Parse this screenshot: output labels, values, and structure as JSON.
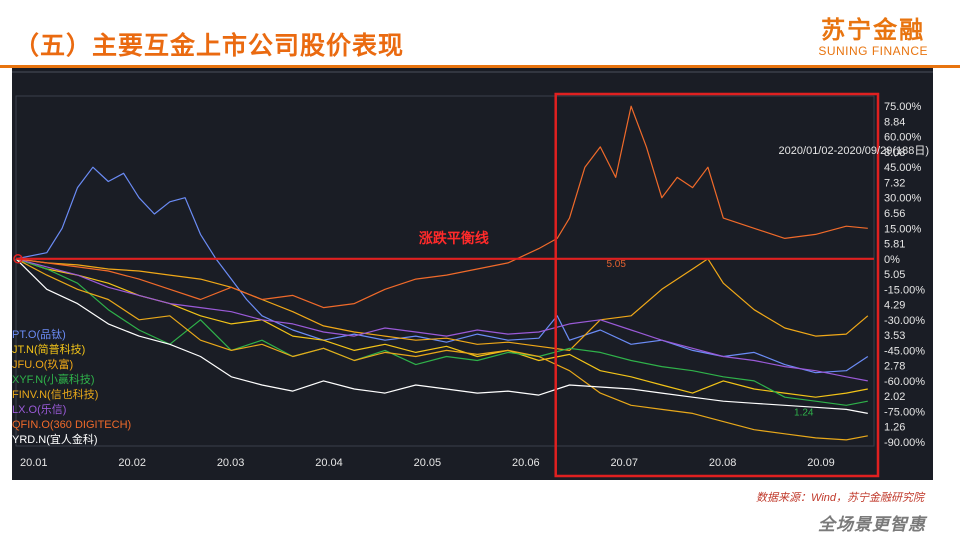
{
  "page": {
    "title": "（五）主要互金上市公司股价表现",
    "logo_cn": "苏宁金融",
    "logo_en": "SUNING FINANCE",
    "source": "数据来源：Wind，苏宁金融研究院",
    "slogan": "全场景更智惠",
    "colors": {
      "accent": "#e8740f",
      "panel_bg": "#1a1d25",
      "highlight": "#e02020"
    }
  },
  "chart_data": {
    "type": "line",
    "date_range": "2020/01/02-2020/09/29(188日)",
    "categories": [
      "20.01",
      "20.02",
      "20.03",
      "20.04",
      "20.05",
      "20.06",
      "20.07",
      "20.08",
      "20.09"
    ],
    "y_right_pct_ticks": [
      "75.00%",
      "60.00%",
      "45.00%",
      "30.00%",
      "15.00%",
      "0%",
      "-15.00%",
      "-30.00%",
      "-45.00%",
      "-60.00%",
      "-75.00%",
      "-90.00%"
    ],
    "y_right_pct_values": [
      75,
      60,
      45,
      30,
      15,
      0,
      -15,
      -30,
      -45,
      -60,
      -75,
      -90
    ],
    "y_price_ticks": [
      "8.84",
      "8.08",
      "7.32",
      "6.56",
      "5.81",
      "5.05",
      "4.29",
      "3.53",
      "2.78",
      "2.02",
      "1.26"
    ],
    "ylim_pct": [
      -92,
      80
    ],
    "zero_line_label": "涨跌平衡线",
    "point_labels": [
      {
        "text": "5.05",
        "x": 19.2,
        "y": -2,
        "color": "#e06030"
      },
      {
        "text": "1.24",
        "x": 25.3,
        "y": -75,
        "color": "#2fb24a"
      }
    ],
    "highlight_from_x": 17.55,
    "x_range": [
      0,
      27.9
    ],
    "series": [
      {
        "name": "PT.O(品钛)",
        "color": "#6b8cf6",
        "points": [
          [
            0,
            0
          ],
          [
            1,
            3
          ],
          [
            1.5,
            15
          ],
          [
            2,
            35
          ],
          [
            2.5,
            45
          ],
          [
            3,
            38
          ],
          [
            3.5,
            42
          ],
          [
            4,
            30
          ],
          [
            4.5,
            22
          ],
          [
            5,
            28
          ],
          [
            5.5,
            30
          ],
          [
            6,
            12
          ],
          [
            6.5,
            0
          ],
          [
            7,
            -10
          ],
          [
            7.5,
            -20
          ],
          [
            8,
            -28
          ],
          [
            9,
            -35
          ],
          [
            10,
            -40
          ],
          [
            11,
            -37
          ],
          [
            12,
            -40
          ],
          [
            13,
            -38
          ],
          [
            14,
            -41
          ],
          [
            15,
            -37
          ],
          [
            16,
            -40
          ],
          [
            17,
            -39
          ],
          [
            17.6,
            -28
          ],
          [
            18,
            -40
          ],
          [
            19,
            -35
          ],
          [
            20,
            -42
          ],
          [
            21,
            -40
          ],
          [
            22,
            -45
          ],
          [
            23,
            -48
          ],
          [
            24,
            -46
          ],
          [
            25,
            -52
          ],
          [
            26,
            -56
          ],
          [
            27,
            -55
          ],
          [
            27.7,
            -48
          ]
        ]
      },
      {
        "name": "JT.N(简普科技)",
        "color": "#f2c318",
        "points": [
          [
            0,
            0
          ],
          [
            1,
            -5
          ],
          [
            2,
            -8
          ],
          [
            3,
            -12
          ],
          [
            4,
            -18
          ],
          [
            5,
            -22
          ],
          [
            6,
            -28
          ],
          [
            7,
            -32
          ],
          [
            8,
            -30
          ],
          [
            9,
            -38
          ],
          [
            10,
            -40
          ],
          [
            11,
            -45
          ],
          [
            12,
            -42
          ],
          [
            13,
            -46
          ],
          [
            14,
            -43
          ],
          [
            15,
            -48
          ],
          [
            16,
            -45
          ],
          [
            17,
            -50
          ],
          [
            18,
            -47
          ],
          [
            19,
            -55
          ],
          [
            20,
            -58
          ],
          [
            21,
            -62
          ],
          [
            22,
            -66
          ],
          [
            23,
            -60
          ],
          [
            24,
            -64
          ],
          [
            25,
            -66
          ],
          [
            26,
            -68
          ],
          [
            27,
            -66
          ],
          [
            27.7,
            -64
          ]
        ]
      },
      {
        "name": "JFU.O(玖富)",
        "color": "#f0a818",
        "points": [
          [
            0,
            0
          ],
          [
            1,
            -2
          ],
          [
            2,
            -3
          ],
          [
            3,
            -5
          ],
          [
            4,
            -6
          ],
          [
            5,
            -8
          ],
          [
            6,
            -10
          ],
          [
            7,
            -14
          ],
          [
            8,
            -20
          ],
          [
            9,
            -26
          ],
          [
            10,
            -33
          ],
          [
            11,
            -36
          ],
          [
            12,
            -38
          ],
          [
            13,
            -40
          ],
          [
            14,
            -39
          ],
          [
            15,
            -42
          ],
          [
            16,
            -41
          ],
          [
            17,
            -43
          ],
          [
            18,
            -45
          ],
          [
            19,
            -30
          ],
          [
            20,
            -28
          ],
          [
            21,
            -15
          ],
          [
            22,
            -5
          ],
          [
            22.5,
            0
          ],
          [
            23,
            -12
          ],
          [
            24,
            -25
          ],
          [
            25,
            -34
          ],
          [
            26,
            -38
          ],
          [
            27,
            -37
          ],
          [
            27.7,
            -28
          ]
        ]
      },
      {
        "name": "XYF.N(小赢科技)",
        "color": "#2fb24a",
        "points": [
          [
            0,
            0
          ],
          [
            1,
            -5
          ],
          [
            2,
            -12
          ],
          [
            3,
            -25
          ],
          [
            4,
            -35
          ],
          [
            5,
            -42
          ],
          [
            6,
            -30
          ],
          [
            7,
            -45
          ],
          [
            8,
            -40
          ],
          [
            9,
            -48
          ],
          [
            10,
            -44
          ],
          [
            11,
            -50
          ],
          [
            12,
            -45
          ],
          [
            13,
            -52
          ],
          [
            14,
            -48
          ],
          [
            15,
            -50
          ],
          [
            16,
            -46
          ],
          [
            17,
            -48
          ],
          [
            18,
            -44
          ],
          [
            19,
            -46
          ],
          [
            20,
            -50
          ],
          [
            21,
            -53
          ],
          [
            22,
            -55
          ],
          [
            23,
            -58
          ],
          [
            24,
            -60
          ],
          [
            25,
            -68
          ],
          [
            26,
            -70
          ],
          [
            27,
            -72
          ],
          [
            27.7,
            -70
          ]
        ]
      },
      {
        "name": "FINV.N(信也科技)",
        "color": "#e8a81a",
        "points": [
          [
            0,
            0
          ],
          [
            1,
            -8
          ],
          [
            2,
            -15
          ],
          [
            3,
            -20
          ],
          [
            4,
            -30
          ],
          [
            5,
            -28
          ],
          [
            6,
            -40
          ],
          [
            7,
            -45
          ],
          [
            8,
            -42
          ],
          [
            9,
            -48
          ],
          [
            10,
            -44
          ],
          [
            11,
            -50
          ],
          [
            12,
            -46
          ],
          [
            13,
            -48
          ],
          [
            14,
            -45
          ],
          [
            15,
            -47
          ],
          [
            16,
            -45
          ],
          [
            17,
            -48
          ],
          [
            18,
            -55
          ],
          [
            19,
            -66
          ],
          [
            20,
            -72
          ],
          [
            21,
            -74
          ],
          [
            22,
            -76
          ],
          [
            23,
            -80
          ],
          [
            24,
            -84
          ],
          [
            25,
            -86
          ],
          [
            26,
            -88
          ],
          [
            27,
            -89
          ],
          [
            27.7,
            -87
          ]
        ]
      },
      {
        "name": "LX.O(乐信)",
        "color": "#9a5ad8",
        "points": [
          [
            0,
            0
          ],
          [
            1,
            -4
          ],
          [
            2,
            -8
          ],
          [
            3,
            -14
          ],
          [
            4,
            -18
          ],
          [
            5,
            -22
          ],
          [
            6,
            -24
          ],
          [
            7,
            -26
          ],
          [
            8,
            -30
          ],
          [
            9,
            -32
          ],
          [
            10,
            -36
          ],
          [
            11,
            -38
          ],
          [
            12,
            -34
          ],
          [
            13,
            -36
          ],
          [
            14,
            -38
          ],
          [
            15,
            -35
          ],
          [
            16,
            -37
          ],
          [
            17,
            -36
          ],
          [
            18,
            -32
          ],
          [
            19,
            -30
          ],
          [
            20,
            -35
          ],
          [
            21,
            -40
          ],
          [
            22,
            -44
          ],
          [
            23,
            -48
          ],
          [
            24,
            -50
          ],
          [
            25,
            -53
          ],
          [
            26,
            -55
          ],
          [
            27,
            -58
          ],
          [
            27.7,
            -60
          ]
        ]
      },
      {
        "name": "QFIN.O(360 DIGITECH)",
        "color": "#f06a2a",
        "points": [
          [
            0,
            0
          ],
          [
            1,
            -2
          ],
          [
            2,
            -4
          ],
          [
            3,
            -6
          ],
          [
            4,
            -10
          ],
          [
            5,
            -15
          ],
          [
            6,
            -20
          ],
          [
            7,
            -14
          ],
          [
            8,
            -20
          ],
          [
            9,
            -18
          ],
          [
            10,
            -24
          ],
          [
            11,
            -22
          ],
          [
            12,
            -15
          ],
          [
            13,
            -10
          ],
          [
            14,
            -8
          ],
          [
            15,
            -5
          ],
          [
            16,
            -2
          ],
          [
            17,
            5
          ],
          [
            17.6,
            10
          ],
          [
            18,
            20
          ],
          [
            18.5,
            45
          ],
          [
            19,
            55
          ],
          [
            19.5,
            40
          ],
          [
            20,
            75
          ],
          [
            20.5,
            55
          ],
          [
            21,
            30
          ],
          [
            21.5,
            40
          ],
          [
            22,
            35
          ],
          [
            22.5,
            45
          ],
          [
            23,
            20
          ],
          [
            24,
            15
          ],
          [
            25,
            10
          ],
          [
            26,
            12
          ],
          [
            27,
            16
          ],
          [
            27.7,
            15
          ]
        ]
      },
      {
        "name": "YRD.N(宜人金科)",
        "color": "#ffffff",
        "points": [
          [
            0,
            0
          ],
          [
            1,
            -15
          ],
          [
            2,
            -22
          ],
          [
            3,
            -32
          ],
          [
            4,
            -38
          ],
          [
            5,
            -42
          ],
          [
            6,
            -48
          ],
          [
            7,
            -58
          ],
          [
            8,
            -62
          ],
          [
            9,
            -65
          ],
          [
            10,
            -60
          ],
          [
            11,
            -64
          ],
          [
            12,
            -66
          ],
          [
            13,
            -62
          ],
          [
            14,
            -64
          ],
          [
            15,
            -66
          ],
          [
            16,
            -65
          ],
          [
            17,
            -67
          ],
          [
            18,
            -62
          ],
          [
            19,
            -63
          ],
          [
            20,
            -64
          ],
          [
            21,
            -66
          ],
          [
            22,
            -68
          ],
          [
            23,
            -70
          ],
          [
            24,
            -71
          ],
          [
            25,
            -72
          ],
          [
            26,
            -73
          ],
          [
            27,
            -74
          ],
          [
            27.7,
            -76
          ]
        ]
      }
    ]
  }
}
